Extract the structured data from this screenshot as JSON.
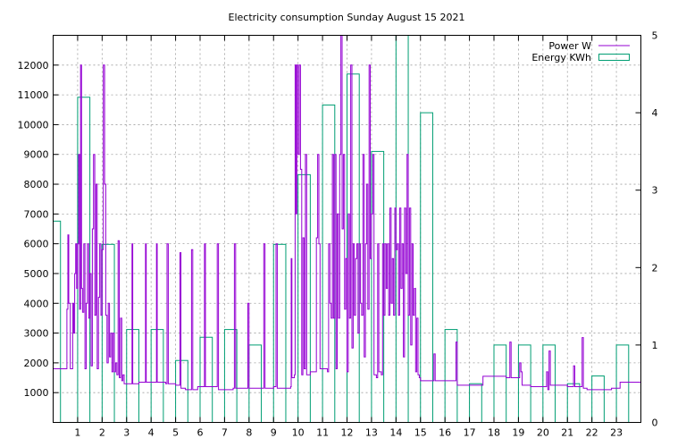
{
  "chart_data": {
    "type": "line",
    "title": "Electricity consumption Sunday August 15 2021",
    "x_ticks": [
      1,
      2,
      3,
      4,
      5,
      6,
      7,
      8,
      9,
      10,
      11,
      12,
      13,
      14,
      15,
      16,
      17,
      18,
      19,
      20,
      21,
      22,
      23
    ],
    "xlim": [
      0,
      24
    ],
    "y_left": {
      "ylim": [
        0,
        13000
      ],
      "ticks": [
        1000,
        2000,
        3000,
        4000,
        5000,
        6000,
        7000,
        8000,
        9000,
        10000,
        11000,
        12000
      ]
    },
    "y_right": {
      "ylim": [
        0,
        5
      ],
      "ticks": [
        0,
        1,
        2,
        3,
        4,
        5
      ]
    },
    "grid": true,
    "legend_position": "top-right",
    "colors": {
      "power": "#9400d3",
      "energy": "#009e73"
    },
    "series": [
      {
        "name": "Power W",
        "axis": "left",
        "type": "line",
        "points": [
          [
            0.0,
            1800
          ],
          [
            0.55,
            1800
          ],
          [
            0.56,
            3800
          ],
          [
            0.6,
            6300
          ],
          [
            0.64,
            4000
          ],
          [
            0.7,
            1800
          ],
          [
            0.8,
            4000
          ],
          [
            0.84,
            3000
          ],
          [
            0.88,
            5000
          ],
          [
            0.92,
            6000
          ],
          [
            0.96,
            4500
          ],
          [
            1.0,
            6000
          ],
          [
            1.04,
            9000
          ],
          [
            1.08,
            3800
          ],
          [
            1.12,
            12000
          ],
          [
            1.16,
            4500
          ],
          [
            1.2,
            3700
          ],
          [
            1.25,
            6000
          ],
          [
            1.3,
            1800
          ],
          [
            1.35,
            4000
          ],
          [
            1.4,
            6000
          ],
          [
            1.45,
            3500
          ],
          [
            1.5,
            5000
          ],
          [
            1.55,
            1900
          ],
          [
            1.6,
            6500
          ],
          [
            1.65,
            9000
          ],
          [
            1.7,
            3600
          ],
          [
            1.75,
            8000
          ],
          [
            1.8,
            1800
          ],
          [
            1.85,
            4200
          ],
          [
            1.9,
            6000
          ],
          [
            1.95,
            3600
          ],
          [
            2.0,
            5800
          ],
          [
            2.05,
            12000
          ],
          [
            2.1,
            8000
          ],
          [
            2.15,
            3600
          ],
          [
            2.2,
            2000
          ],
          [
            2.25,
            4000
          ],
          [
            2.3,
            2200
          ],
          [
            2.35,
            3000
          ],
          [
            2.4,
            1700
          ],
          [
            2.45,
            3000
          ],
          [
            2.5,
            1700
          ],
          [
            2.55,
            2000
          ],
          [
            2.6,
            1600
          ],
          [
            2.65,
            6100
          ],
          [
            2.7,
            1500
          ],
          [
            2.75,
            3500
          ],
          [
            2.8,
            1400
          ],
          [
            2.85,
            1600
          ],
          [
            2.9,
            1300
          ],
          [
            3.0,
            1300
          ],
          [
            3.2,
            1300
          ],
          [
            3.22,
            6000
          ],
          [
            3.25,
            1300
          ],
          [
            3.5,
            1350
          ],
          [
            3.75,
            1350
          ],
          [
            3.77,
            6000
          ],
          [
            3.8,
            1350
          ],
          [
            4.0,
            1350
          ],
          [
            4.2,
            1350
          ],
          [
            4.22,
            6000
          ],
          [
            4.25,
            1350
          ],
          [
            4.6,
            1300
          ],
          [
            4.65,
            6000
          ],
          [
            4.7,
            1300
          ],
          [
            5.0,
            1250
          ],
          [
            5.15,
            1250
          ],
          [
            5.18,
            5700
          ],
          [
            5.22,
            1150
          ],
          [
            5.4,
            1100
          ],
          [
            5.6,
            1100
          ],
          [
            5.65,
            5800
          ],
          [
            5.7,
            1100
          ],
          [
            5.9,
            1200
          ],
          [
            6.15,
            1200
          ],
          [
            6.18,
            6000
          ],
          [
            6.22,
            1200
          ],
          [
            6.65,
            1200
          ],
          [
            6.7,
            6000
          ],
          [
            6.75,
            1100
          ],
          [
            7.0,
            1100
          ],
          [
            7.35,
            1150
          ],
          [
            7.4,
            6000
          ],
          [
            7.45,
            1150
          ],
          [
            7.9,
            1150
          ],
          [
            7.95,
            4000
          ],
          [
            8.0,
            1150
          ],
          [
            8.55,
            1150
          ],
          [
            8.6,
            6000
          ],
          [
            8.65,
            1150
          ],
          [
            9.0,
            1200
          ],
          [
            9.1,
            6000
          ],
          [
            9.15,
            1150
          ],
          [
            9.5,
            1150
          ],
          [
            9.7,
            1200
          ],
          [
            9.72,
            5500
          ],
          [
            9.75,
            1500
          ],
          [
            9.85,
            1600
          ],
          [
            9.88,
            12000
          ],
          [
            9.92,
            7000
          ],
          [
            9.95,
            12000
          ],
          [
            10.0,
            9000
          ],
          [
            10.05,
            12000
          ],
          [
            10.1,
            8500
          ],
          [
            10.15,
            1600
          ],
          [
            10.2,
            6200
          ],
          [
            10.25,
            1800
          ],
          [
            10.3,
            9000
          ],
          [
            10.35,
            1600
          ],
          [
            10.5,
            1700
          ],
          [
            10.7,
            1700
          ],
          [
            10.75,
            6200
          ],
          [
            10.8,
            9000
          ],
          [
            10.85,
            6000
          ],
          [
            10.9,
            1800
          ],
          [
            11.0,
            1800
          ],
          [
            11.2,
            1700
          ],
          [
            11.25,
            6000
          ],
          [
            11.3,
            4000
          ],
          [
            11.35,
            3500
          ],
          [
            11.4,
            9000
          ],
          [
            11.45,
            3500
          ],
          [
            11.5,
            9000
          ],
          [
            11.55,
            1800
          ],
          [
            11.6,
            7000
          ],
          [
            11.65,
            3500
          ],
          [
            11.7,
            9000
          ],
          [
            11.75,
            13000
          ],
          [
            11.8,
            6500
          ],
          [
            11.85,
            9000
          ],
          [
            11.9,
            3800
          ],
          [
            11.95,
            5500
          ],
          [
            12.0,
            1700
          ],
          [
            12.05,
            7000
          ],
          [
            12.1,
            3500
          ],
          [
            12.15,
            12000
          ],
          [
            12.2,
            2500
          ],
          [
            12.25,
            6000
          ],
          [
            12.3,
            3600
          ],
          [
            12.35,
            5500
          ],
          [
            12.4,
            6000
          ],
          [
            12.45,
            3000
          ],
          [
            12.5,
            6000
          ],
          [
            12.55,
            4000
          ],
          [
            12.6,
            3600
          ],
          [
            12.65,
            9000
          ],
          [
            12.7,
            2200
          ],
          [
            12.75,
            6000
          ],
          [
            12.8,
            8000
          ],
          [
            12.85,
            3800
          ],
          [
            12.9,
            12000
          ],
          [
            12.95,
            5500
          ],
          [
            13.0,
            7000
          ],
          [
            13.05,
            9000
          ],
          [
            13.1,
            1600
          ],
          [
            13.2,
            1500
          ],
          [
            13.25,
            6000
          ],
          [
            13.3,
            1700
          ],
          [
            13.4,
            1600
          ],
          [
            13.45,
            6000
          ],
          [
            13.5,
            3600
          ],
          [
            13.55,
            6000
          ],
          [
            13.6,
            4500
          ],
          [
            13.65,
            6000
          ],
          [
            13.7,
            3600
          ],
          [
            13.75,
            7200
          ],
          [
            13.8,
            4000
          ],
          [
            13.85,
            5500
          ],
          [
            13.9,
            3600
          ],
          [
            13.95,
            7200
          ],
          [
            14.0,
            5800
          ],
          [
            14.05,
            6000
          ],
          [
            14.1,
            3600
          ],
          [
            14.15,
            7200
          ],
          [
            14.2,
            4500
          ],
          [
            14.25,
            6000
          ],
          [
            14.3,
            2200
          ],
          [
            14.35,
            7200
          ],
          [
            14.4,
            5000
          ],
          [
            14.45,
            9000
          ],
          [
            14.5,
            3600
          ],
          [
            14.55,
            7200
          ],
          [
            14.6,
            2600
          ],
          [
            14.65,
            6000
          ],
          [
            14.7,
            3600
          ],
          [
            14.75,
            4500
          ],
          [
            14.8,
            1700
          ],
          [
            14.85,
            3500
          ],
          [
            14.9,
            1600
          ],
          [
            14.95,
            1500
          ],
          [
            15.0,
            1400
          ],
          [
            15.5,
            1400
          ],
          [
            15.55,
            2300
          ],
          [
            15.6,
            1400
          ],
          [
            16.0,
            1400
          ],
          [
            16.4,
            1400
          ],
          [
            16.45,
            2700
          ],
          [
            16.5,
            1250
          ],
          [
            17.0,
            1250
          ],
          [
            17.5,
            1250
          ],
          [
            17.55,
            1550
          ],
          [
            18.0,
            1550
          ],
          [
            18.5,
            1500
          ],
          [
            18.6,
            1500
          ],
          [
            18.65,
            2700
          ],
          [
            18.7,
            1500
          ],
          [
            19.0,
            1500
          ],
          [
            19.05,
            2000
          ],
          [
            19.1,
            1700
          ],
          [
            19.15,
            1250
          ],
          [
            19.5,
            1200
          ],
          [
            20.0,
            1200
          ],
          [
            20.1,
            1200
          ],
          [
            20.15,
            1700
          ],
          [
            20.2,
            1100
          ],
          [
            20.25,
            2400
          ],
          [
            20.3,
            1250
          ],
          [
            20.4,
            1250
          ],
          [
            21.0,
            1200
          ],
          [
            21.2,
            1200
          ],
          [
            21.25,
            1900
          ],
          [
            21.3,
            1200
          ],
          [
            21.5,
            1200
          ],
          [
            21.6,
            2850
          ],
          [
            21.65,
            1150
          ],
          [
            21.8,
            1100
          ],
          [
            22.0,
            1100
          ],
          [
            22.8,
            1150
          ],
          [
            23.0,
            1150
          ],
          [
            23.15,
            1350
          ],
          [
            23.6,
            1350
          ],
          [
            24.0,
            1300
          ]
        ]
      },
      {
        "name": "Energy KWh",
        "axis": "right",
        "type": "bar",
        "bars": [
          {
            "x": 0,
            "width": 0.3,
            "value": 2.6
          },
          {
            "x": 1,
            "width": 0.5,
            "value": 4.2
          },
          {
            "x": 2,
            "width": 0.5,
            "value": 2.3
          },
          {
            "x": 3,
            "width": 0.5,
            "value": 1.2
          },
          {
            "x": 4,
            "width": 0.5,
            "value": 1.2
          },
          {
            "x": 5,
            "width": 0.5,
            "value": 0.8
          },
          {
            "x": 6,
            "width": 0.5,
            "value": 1.1
          },
          {
            "x": 7,
            "width": 0.5,
            "value": 1.2
          },
          {
            "x": 8,
            "width": 0.5,
            "value": 1.0
          },
          {
            "x": 9,
            "width": 0.5,
            "value": 2.3
          },
          {
            "x": 10,
            "width": 0.5,
            "value": 3.2
          },
          {
            "x": 11,
            "width": 0.5,
            "value": 4.1
          },
          {
            "x": 12,
            "width": 0.5,
            "value": 4.5
          },
          {
            "x": 13,
            "width": 0.5,
            "value": 3.5
          },
          {
            "x": 14,
            "width": 0.5,
            "value": 5.0
          },
          {
            "x": 15,
            "width": 0.5,
            "value": 4.0
          },
          {
            "x": 16,
            "width": 0.5,
            "value": 1.2
          },
          {
            "x": 17,
            "width": 0.5,
            "value": 0.5
          },
          {
            "x": 18,
            "width": 0.5,
            "value": 1.0
          },
          {
            "x": 19,
            "width": 0.5,
            "value": 1.0
          },
          {
            "x": 20,
            "width": 0.5,
            "value": 1.0
          },
          {
            "x": 21,
            "width": 0.5,
            "value": 0.5
          },
          {
            "x": 22,
            "width": 0.5,
            "value": 0.6
          },
          {
            "x": 23,
            "width": 0.5,
            "value": 1.0
          }
        ]
      }
    ]
  }
}
